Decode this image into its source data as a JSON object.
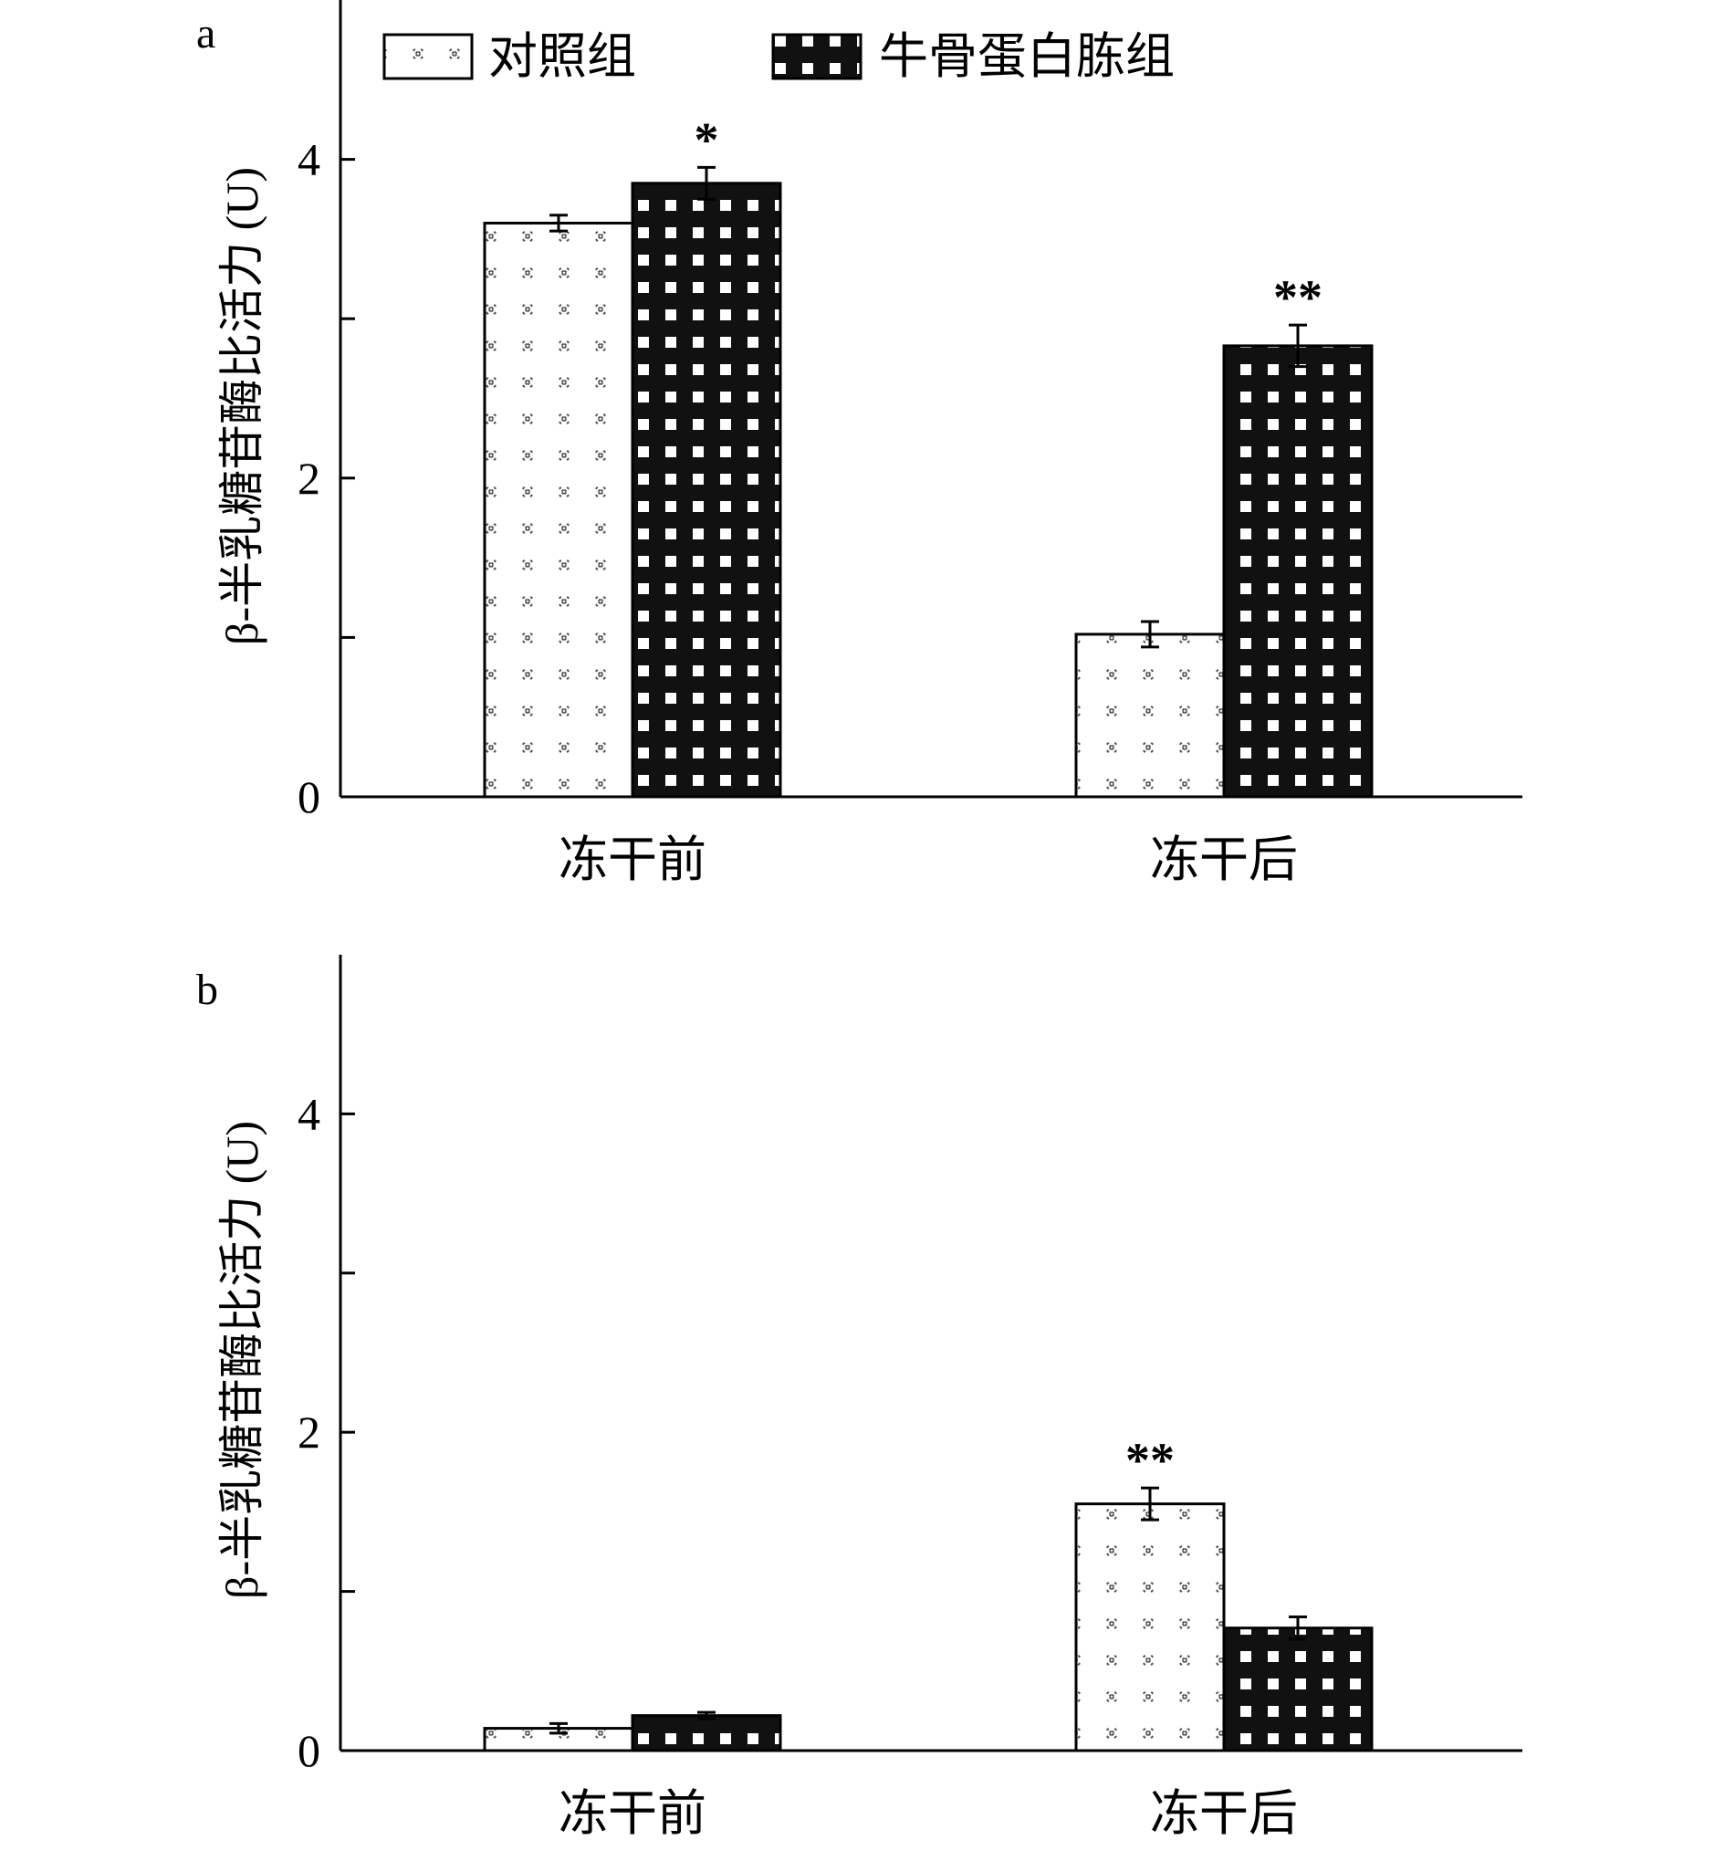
{
  "legend": {
    "control": "对照组",
    "treatment": "牛骨蛋白胨组"
  },
  "chart_data": [
    {
      "panel": "a",
      "type": "bar",
      "ylabel": "β-半乳糖苷酶比活力 (U)",
      "ylim": [
        0,
        5
      ],
      "yticks": [
        0,
        2,
        4
      ],
      "categories": [
        "冻干前",
        "冻干后"
      ],
      "series": [
        {
          "name": "对照组",
          "key": "control",
          "values": [
            3.6,
            1.02
          ],
          "errors": [
            0.05,
            0.08
          ],
          "annotations": [
            "",
            ""
          ]
        },
        {
          "name": "牛骨蛋白胨组",
          "key": "treatment",
          "values": [
            3.85,
            2.83
          ],
          "errors": [
            0.1,
            0.13
          ],
          "annotations": [
            "*",
            "**"
          ]
        }
      ]
    },
    {
      "panel": "b",
      "type": "bar",
      "ylabel": "β-半乳糖苷酶比活力 (U)",
      "ylim": [
        0,
        5
      ],
      "yticks": [
        0,
        2,
        4
      ],
      "categories": [
        "冻干前",
        "冻干后"
      ],
      "series": [
        {
          "name": "对照组",
          "key": "control",
          "values": [
            0.14,
            1.55
          ],
          "errors": [
            0.03,
            0.1
          ],
          "annotations": [
            "",
            "**"
          ]
        },
        {
          "name": "牛骨蛋白胨组",
          "key": "treatment",
          "values": [
            0.22,
            0.77
          ],
          "errors": [
            0.02,
            0.07
          ],
          "annotations": [
            "",
            ""
          ]
        }
      ]
    }
  ],
  "colors": {
    "control_fill": "#ffffff",
    "control_mark": "#555555",
    "treatment_fill": "#111111",
    "treatment_mark": "#ffffff",
    "axis": "#000000"
  }
}
